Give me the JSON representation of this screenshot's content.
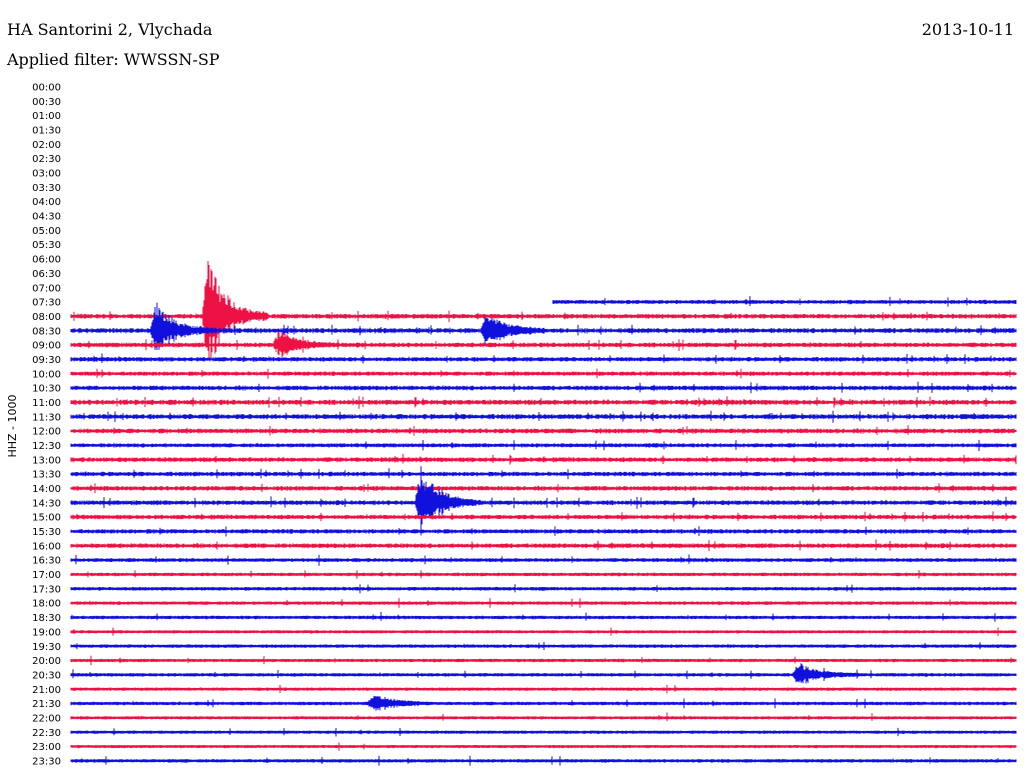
{
  "header": {
    "station": "HA Santorini 2, Vlychada",
    "date": "2013-10-11",
    "filter": "Applied filter: WWSSN-SP"
  },
  "chart_data": {
    "type": "line",
    "title": "HA Santorini 2, Vlychada",
    "ylabel": "HHZ - 1000",
    "row_labels": [
      "00:00",
      "00:30",
      "01:00",
      "01:30",
      "02:00",
      "02:30",
      "03:00",
      "03:30",
      "04:00",
      "04:30",
      "05:00",
      "05:30",
      "06:00",
      "06:30",
      "07:00",
      "07:30",
      "08:00",
      "08:30",
      "09:00",
      "09:30",
      "10:00",
      "10:30",
      "11:00",
      "11:30",
      "12:00",
      "12:30",
      "13:00",
      "13:30",
      "14:00",
      "14:30",
      "15:00",
      "15:30",
      "16:00",
      "16:30",
      "17:00",
      "17:30",
      "18:00",
      "18:30",
      "19:00",
      "19:30",
      "20:00",
      "20:30",
      "21:00",
      "21:30",
      "22:00",
      "22:30",
      "23:00",
      "23:30"
    ],
    "colors": [
      "#ee1144",
      "#1111dd"
    ],
    "data_start_row": "07:30",
    "data_start_fraction": 0.51,
    "noise_level": [
      0,
      0,
      0,
      0,
      0,
      0,
      0,
      0,
      0,
      0,
      0,
      0,
      0,
      0,
      0,
      0.45,
      0.6,
      0.7,
      0.6,
      0.55,
      0.5,
      0.6,
      0.75,
      0.7,
      0.65,
      0.45,
      0.6,
      0.55,
      0.6,
      0.6,
      0.55,
      0.55,
      0.6,
      0.4,
      0.3,
      0.35,
      0.3,
      0.3,
      0.2,
      0.3,
      0.25,
      0.3,
      0.25,
      0.3,
      0.2,
      0.25,
      0.2,
      0.3
    ],
    "events": [
      {
        "row": "08:00",
        "t": 0.145,
        "amp": 60
      },
      {
        "row": "08:30",
        "t": 0.09,
        "amp": 28
      },
      {
        "row": "08:30",
        "t": 0.44,
        "amp": 18
      },
      {
        "row": "09:00",
        "t": 0.22,
        "amp": 14
      },
      {
        "row": "14:30",
        "t": 0.37,
        "amp": 35
      },
      {
        "row": "20:30",
        "t": 0.77,
        "amp": 12
      },
      {
        "row": "21:30",
        "t": 0.32,
        "amp": 10
      }
    ]
  }
}
